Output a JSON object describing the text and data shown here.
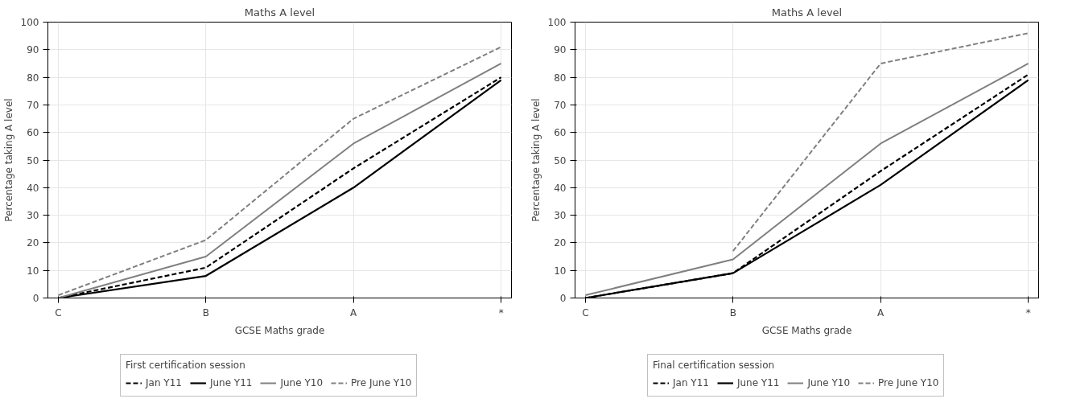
{
  "chart_data": [
    {
      "type": "line",
      "title": "Maths A level",
      "xlabel": "GCSE Maths grade",
      "ylabel": "Percentage taking A level",
      "legend_title": "First certification session",
      "categories": [
        "C",
        "B",
        "A",
        "*"
      ],
      "ylim": [
        0,
        100
      ],
      "yticks": [
        0,
        10,
        20,
        30,
        40,
        50,
        60,
        70,
        80,
        90,
        100
      ],
      "grid": true,
      "legend": "bottom",
      "series": [
        {
          "name": "Jan Y11",
          "color": "#000000",
          "line_style": "dashed",
          "values": [
            0,
            11,
            47,
            80
          ]
        },
        {
          "name": "June Y11",
          "color": "#000000",
          "line_style": "solid",
          "values": [
            0,
            8,
            40,
            79
          ]
        },
        {
          "name": "June Y10",
          "color": "#808080",
          "line_style": "solid",
          "values": [
            0,
            15,
            56,
            85
          ]
        },
        {
          "name": "Pre June Y10",
          "color": "#808080",
          "line_style": "dashed",
          "values": [
            1,
            21,
            65,
            91
          ]
        }
      ]
    },
    {
      "type": "line",
      "title": "Maths A level",
      "xlabel": "GCSE Maths grade",
      "ylabel": "Percentage taking A level",
      "legend_title": "Final certification session",
      "categories": [
        "C",
        "B",
        "A",
        "*"
      ],
      "ylim": [
        0,
        100
      ],
      "yticks": [
        0,
        10,
        20,
        30,
        40,
        50,
        60,
        70,
        80,
        90,
        100
      ],
      "grid": true,
      "legend": "bottom",
      "series": [
        {
          "name": "Jan Y11",
          "color": "#000000",
          "line_style": "dashed",
          "values": [
            0,
            9,
            46,
            81
          ]
        },
        {
          "name": "June Y11",
          "color": "#000000",
          "line_style": "solid",
          "values": [
            0,
            9,
            41,
            79
          ]
        },
        {
          "name": "June Y10",
          "color": "#808080",
          "line_style": "solid",
          "values": [
            1,
            14,
            56,
            85
          ]
        },
        {
          "name": "Pre June Y10",
          "color": "#808080",
          "line_style": "dashed",
          "values": [
            null,
            17,
            85,
            96
          ]
        }
      ]
    }
  ]
}
